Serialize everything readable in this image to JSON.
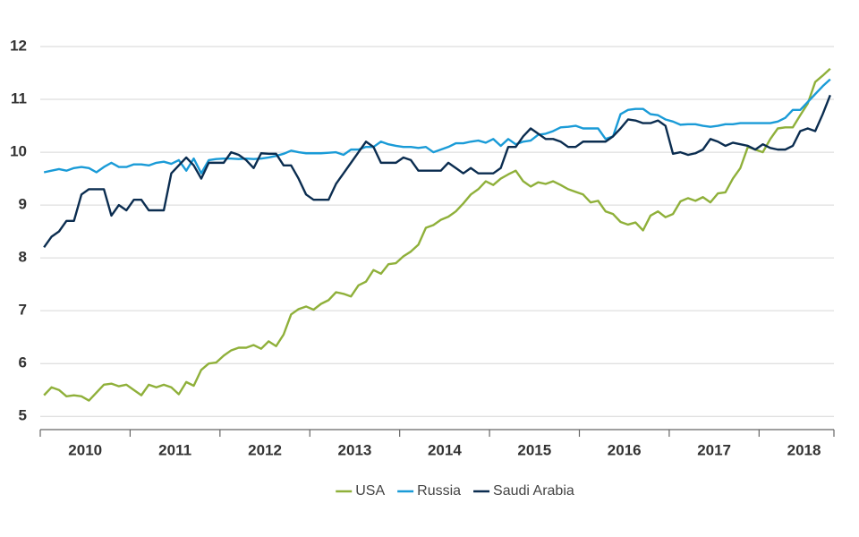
{
  "chart_data": {
    "type": "line",
    "categories": [
      null,
      null,
      null,
      null,
      null,
      null,
      "2010",
      null,
      null,
      null,
      null,
      null,
      null,
      null,
      null,
      null,
      null,
      null,
      "2011",
      null,
      null,
      null,
      null,
      null,
      null,
      null,
      null,
      null,
      null,
      null,
      "2012",
      null,
      null,
      null,
      null,
      null,
      null,
      null,
      null,
      null,
      null,
      null,
      "2013",
      null,
      null,
      null,
      null,
      null,
      null,
      null,
      null,
      null,
      null,
      null,
      "2014",
      null,
      null,
      null,
      null,
      null,
      null,
      null,
      null,
      null,
      null,
      null,
      "2015",
      null,
      null,
      null,
      null,
      null,
      null,
      null,
      null,
      null,
      null,
      null,
      "2016",
      null,
      null,
      null,
      null,
      null,
      null,
      null,
      null,
      null,
      null,
      null,
      "2017",
      null,
      null,
      null,
      null,
      null,
      null,
      null,
      null,
      null,
      null,
      null,
      "2018",
      null,
      null,
      null
    ],
    "series": [
      {
        "name": "USA",
        "color": "#8fb03a",
        "values": [
          5.4,
          5.55,
          5.5,
          5.38,
          5.4,
          5.38,
          5.3,
          5.45,
          5.6,
          5.62,
          5.57,
          5.6,
          5.5,
          5.4,
          5.6,
          5.55,
          5.6,
          5.55,
          5.42,
          5.65,
          5.58,
          5.88,
          6.0,
          6.02,
          6.15,
          6.25,
          6.3,
          6.3,
          6.35,
          6.28,
          6.42,
          6.33,
          6.55,
          6.93,
          7.03,
          7.08,
          7.02,
          7.13,
          7.2,
          7.35,
          7.32,
          7.27,
          7.48,
          7.55,
          7.77,
          7.7,
          7.88,
          7.9,
          8.03,
          8.12,
          8.25,
          8.57,
          8.62,
          8.72,
          8.78,
          8.88,
          9.03,
          9.2,
          9.3,
          9.45,
          9.38,
          9.5,
          9.58,
          9.65,
          9.45,
          9.35,
          9.43,
          9.4,
          9.45,
          9.38,
          9.3,
          9.25,
          9.2,
          9.05,
          9.08,
          8.88,
          8.83,
          8.68,
          8.63,
          8.67,
          8.52,
          8.8,
          8.88,
          8.77,
          8.83,
          9.07,
          9.13,
          9.08,
          9.15,
          9.05,
          9.22,
          9.24,
          9.5,
          9.7,
          10.1,
          10.05,
          10.0,
          10.25,
          10.45,
          10.47,
          10.47,
          10.7,
          10.92,
          11.33,
          11.45,
          11.58
        ]
      },
      {
        "name": "Russia",
        "color": "#1a9bd7",
        "values": [
          9.62,
          9.65,
          9.68,
          9.65,
          9.7,
          9.72,
          9.7,
          9.62,
          9.72,
          9.8,
          9.72,
          9.72,
          9.77,
          9.77,
          9.75,
          9.8,
          9.82,
          9.78,
          9.85,
          9.65,
          9.88,
          9.6,
          9.85,
          9.87,
          9.88,
          9.88,
          9.87,
          9.88,
          9.87,
          9.88,
          9.9,
          9.93,
          9.97,
          10.03,
          10.0,
          9.98,
          9.98,
          9.98,
          9.99,
          10.0,
          9.95,
          10.05,
          10.05,
          10.1,
          10.1,
          10.2,
          10.15,
          10.12,
          10.1,
          10.1,
          10.08,
          10.1,
          10.0,
          10.05,
          10.1,
          10.17,
          10.17,
          10.2,
          10.22,
          10.18,
          10.25,
          10.12,
          10.25,
          10.15,
          10.2,
          10.22,
          10.33,
          10.35,
          10.4,
          10.47,
          10.48,
          10.5,
          10.45,
          10.45,
          10.45,
          10.25,
          10.3,
          10.72,
          10.8,
          10.82,
          10.82,
          10.72,
          10.7,
          10.62,
          10.58,
          10.52,
          10.53,
          10.53,
          10.5,
          10.48,
          10.5,
          10.53,
          10.53,
          10.55,
          10.55,
          10.55,
          10.55,
          10.55,
          10.58,
          10.65,
          10.8,
          10.8,
          10.95,
          11.1,
          11.25,
          11.38
        ]
      },
      {
        "name": "Saudi Arabia",
        "color": "#0b2d50",
        "values": [
          8.2,
          8.4,
          8.5,
          8.7,
          8.7,
          9.2,
          9.3,
          9.3,
          9.3,
          8.8,
          9.0,
          8.9,
          9.1,
          9.1,
          8.9,
          8.9,
          8.9,
          9.6,
          9.75,
          9.9,
          9.75,
          9.5,
          9.8,
          9.8,
          9.8,
          10.0,
          9.95,
          9.85,
          9.7,
          9.98,
          9.97,
          9.97,
          9.75,
          9.75,
          9.5,
          9.2,
          9.1,
          9.1,
          9.1,
          9.4,
          9.6,
          9.8,
          10.0,
          10.2,
          10.1,
          9.8,
          9.8,
          9.8,
          9.9,
          9.85,
          9.65,
          9.65,
          9.65,
          9.65,
          9.8,
          9.7,
          9.6,
          9.7,
          9.6,
          9.6,
          9.6,
          9.7,
          10.1,
          10.1,
          10.3,
          10.45,
          10.35,
          10.25,
          10.25,
          10.2,
          10.1,
          10.1,
          10.2,
          10.2,
          10.2,
          10.2,
          10.3,
          10.45,
          10.62,
          10.6,
          10.55,
          10.55,
          10.6,
          10.5,
          9.97,
          10.0,
          9.95,
          9.98,
          10.05,
          10.25,
          10.2,
          10.12,
          10.18,
          10.15,
          10.12,
          10.05,
          10.15,
          10.08,
          10.05,
          10.05,
          10.12,
          10.4,
          10.45,
          10.4,
          10.72,
          11.08
        ]
      }
    ],
    "ylim": [
      4.75,
      12
    ],
    "yticks": [
      5,
      6,
      7,
      8,
      9,
      10,
      11,
      12
    ],
    "grid": true,
    "legend": "bottom"
  }
}
